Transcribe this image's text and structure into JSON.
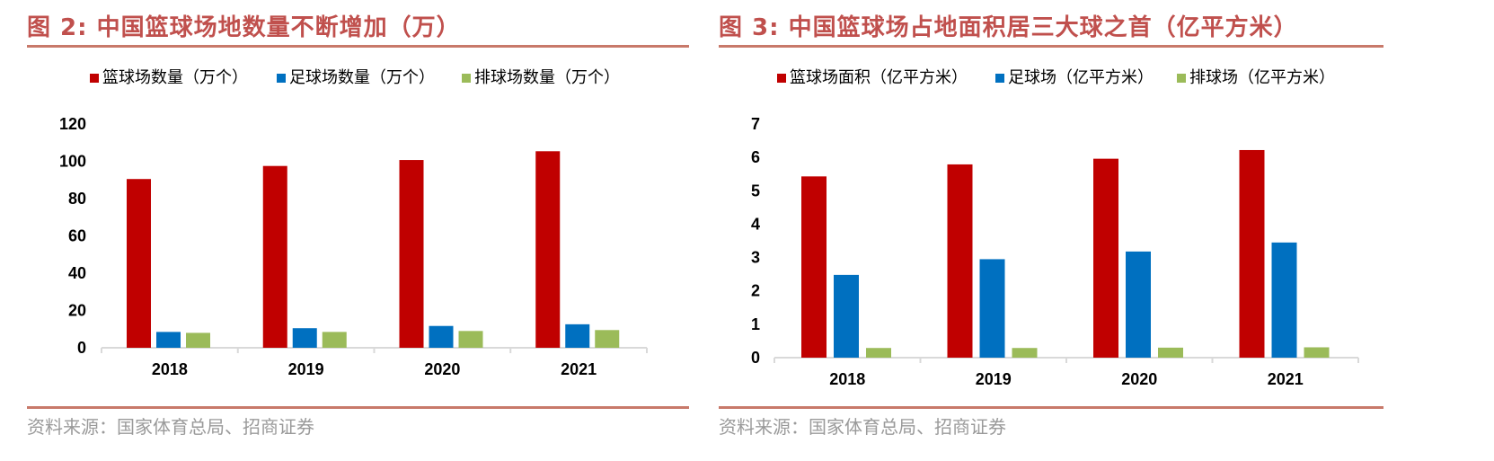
{
  "colors": {
    "basketball": "#c00000",
    "football": "#0070c0",
    "volleyball": "#9bbb59",
    "title": "#c0504d",
    "rule": "#c8796a",
    "source": "#9a9a9a"
  },
  "charts": [
    {
      "title": "图 2:  中国篮球场地数量不断增加（万）",
      "source": "资料来源：国家体育总局、招商证券"
    },
    {
      "title": "图 3:  中国篮球场占地面积居三大球之首（亿平方米）",
      "source": "资料来源：国家体育总局、招商证券"
    }
  ],
  "chart_data": [
    {
      "type": "bar",
      "title": "图 2:  中国篮球场地数量不断增加（万）",
      "categories": [
        "2018",
        "2019",
        "2020",
        "2021"
      ],
      "series": [
        {
          "name": "篮球场数量（万个）",
          "values": [
            90.5,
            97.5,
            100.7,
            105.4
          ]
        },
        {
          "name": "足球场数量（万个）",
          "values": [
            8.5,
            10.5,
            11.7,
            12.6
          ]
        },
        {
          "name": "排球场数量（万个）",
          "values": [
            8.0,
            8.5,
            9.0,
            9.5
          ]
        }
      ],
      "ylim": [
        0,
        120
      ],
      "yticks": [
        "0",
        "20",
        "40",
        "60",
        "80",
        "100",
        "120"
      ],
      "legend": "top",
      "grid": false
    },
    {
      "type": "bar",
      "title": "图 3:  中国篮球场占地面积居三大球之首（亿平方米）",
      "categories": [
        "2018",
        "2019",
        "2020",
        "2021"
      ],
      "series": [
        {
          "name": "篮球场面积（亿平方米）",
          "values": [
            5.43,
            5.79,
            5.96,
            6.22
          ]
        },
        {
          "name": "足球场（亿平方米）",
          "values": [
            2.48,
            2.95,
            3.18,
            3.45
          ]
        },
        {
          "name": "排球场（亿平方米）",
          "values": [
            0.29,
            0.29,
            0.3,
            0.31
          ]
        }
      ],
      "ylim": [
        0,
        7
      ],
      "yticks": [
        "0",
        "1",
        "2",
        "3",
        "4",
        "5",
        "6",
        "7"
      ],
      "legend": "top",
      "grid": false
    }
  ]
}
